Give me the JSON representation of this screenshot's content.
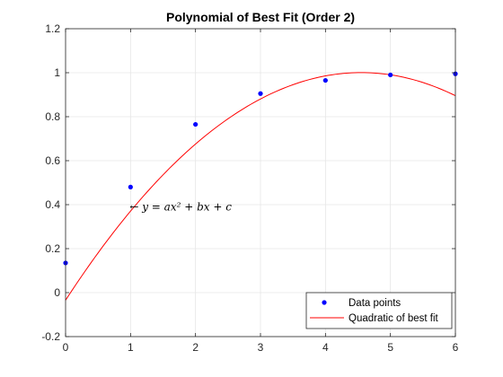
{
  "chart_data": {
    "type": "scatter",
    "title": "Polynomial of Best Fit (Order 2)",
    "xlabel": "",
    "ylabel": "",
    "xlim": [
      0,
      6
    ],
    "ylim": [
      -0.2,
      1.2
    ],
    "xticks": [
      "0",
      "1",
      "2",
      "3",
      "4",
      "5",
      "6"
    ],
    "yticks": [
      "-0.2",
      "0",
      "0.2",
      "0.4",
      "0.6",
      "0.8",
      "1",
      "1.2"
    ],
    "grid": true,
    "legend_position": "bottom-right",
    "series": [
      {
        "name": "Data points",
        "kind": "scatter",
        "color": "#0000ff",
        "x": [
          0,
          1,
          2,
          3,
          4,
          5,
          6
        ],
        "y": [
          0.135,
          0.48,
          0.765,
          0.905,
          0.965,
          0.99,
          0.995
        ]
      },
      {
        "name": "Quadratic of best fit",
        "kind": "line",
        "color": "#ff0000",
        "coefficients": {
          "a": -0.05,
          "b": 0.455,
          "c": -0.0345
        },
        "x_range": [
          0,
          6
        ]
      }
    ],
    "annotation": {
      "text": "← y = ax² + bx + c",
      "x": 1,
      "y": 0.39
    }
  }
}
